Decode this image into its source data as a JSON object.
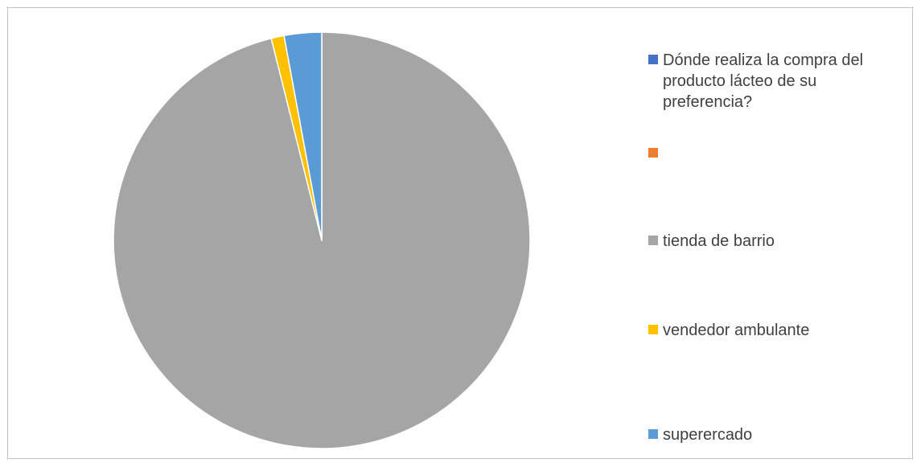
{
  "chart_data": {
    "type": "pie",
    "title": "",
    "legend_position": "right",
    "start_angle_deg": 0,
    "direction": "clockwise",
    "slices": [
      {
        "label": "Dónde realiza la compra del producto lácteo de su preferencia?",
        "value": 0,
        "color": "#4472C4"
      },
      {
        "label": "",
        "value": 0,
        "color": "#ED7D31"
      },
      {
        "label": "tienda de barrio",
        "value": 96.1,
        "color": "#A5A5A5"
      },
      {
        "label": "vendedor ambulante",
        "value": 1.0,
        "color": "#FFC000"
      },
      {
        "label": "superercado",
        "value": 2.9,
        "color": "#5B9BD5"
      }
    ]
  }
}
